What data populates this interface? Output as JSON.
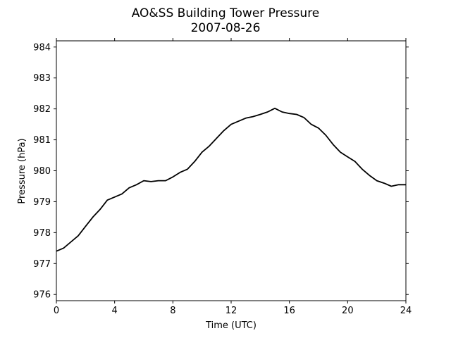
{
  "chart_data": {
    "type": "line",
    "title": "AO&SS Building Tower Pressure",
    "subtitle": "2007-08-26",
    "xlabel": "Time (UTC)",
    "ylabel": "Pressure (hPa)",
    "xlim": [
      0,
      24
    ],
    "ylim": [
      975.8,
      984.2
    ],
    "x_ticks": [
      "0",
      "4",
      "8",
      "12",
      "16",
      "20",
      "24"
    ],
    "y_ticks": [
      "976",
      "977",
      "978",
      "979",
      "980",
      "981",
      "982",
      "983",
      "984"
    ],
    "grid": false,
    "line_color": "#000000",
    "series": [
      {
        "x": [
          0,
          0.5,
          1,
          1.5,
          2,
          2.5,
          3,
          3.5,
          4,
          4.5,
          5,
          5.5,
          6,
          6.5,
          7,
          7.5,
          8,
          8.5,
          9,
          9.5,
          10,
          10.5,
          11,
          11.5,
          12,
          12.5,
          13,
          13.5,
          14,
          14.5,
          15,
          15.5,
          16,
          16.5,
          17,
          17.5,
          18,
          18.5,
          19,
          19.5,
          20,
          20.5,
          21,
          21.5,
          22,
          22.5,
          23,
          23.5,
          24
        ],
        "values": [
          977.4,
          977.5,
          977.7,
          977.9,
          978.2,
          978.5,
          978.75,
          979.05,
          979.15,
          979.25,
          979.45,
          979.55,
          979.68,
          979.65,
          979.68,
          979.68,
          979.8,
          979.95,
          980.05,
          980.3,
          980.6,
          980.8,
          981.05,
          981.3,
          981.5,
          981.6,
          981.7,
          981.75,
          981.82,
          981.9,
          982.02,
          981.9,
          981.85,
          981.82,
          981.72,
          981.5,
          981.38,
          981.15,
          980.85,
          980.6,
          980.45,
          980.3,
          980.05,
          979.85,
          979.68,
          979.6,
          979.5,
          979.55,
          979.55
        ]
      }
    ]
  }
}
